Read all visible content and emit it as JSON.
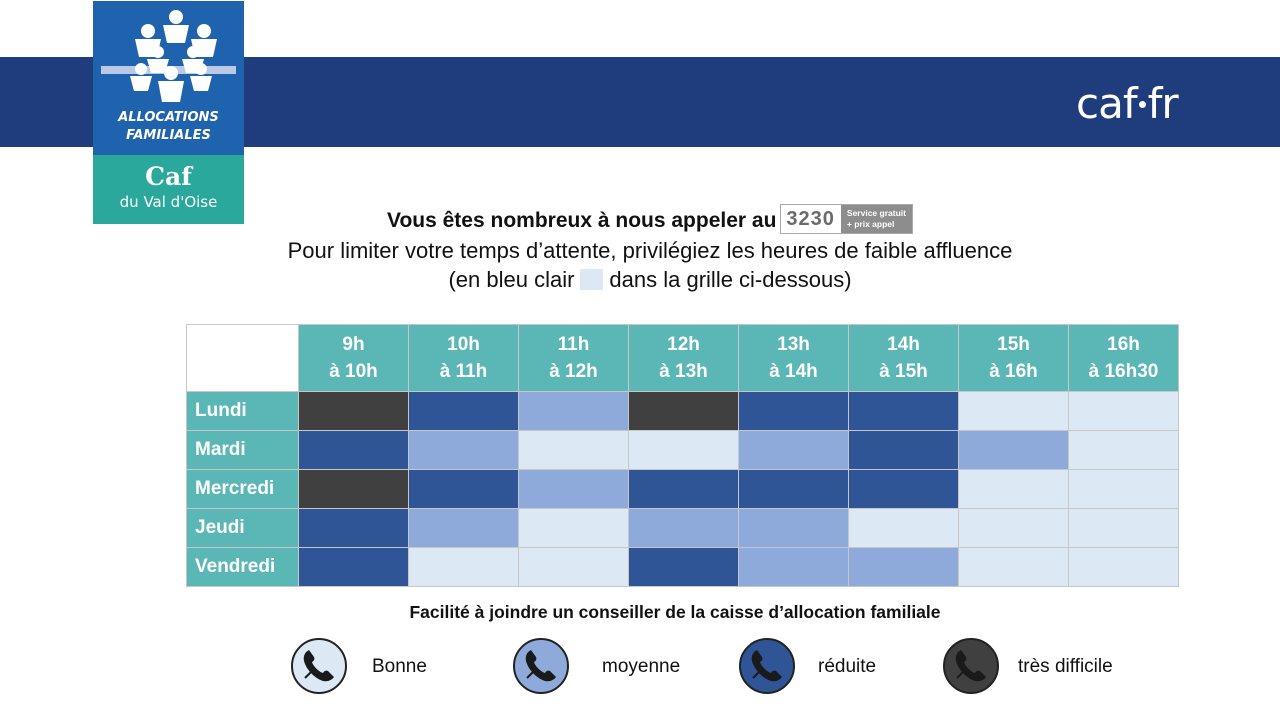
{
  "header": {
    "brand_left": "caf",
    "brand_right": "fr",
    "logo": {
      "line1": "ALLOCATIONS",
      "line2": "FAMILIALES",
      "caf": "Caf",
      "dept": "du Val d'Oise"
    }
  },
  "intro": {
    "line1": "Vous êtes nombreux à nous appeler au",
    "phone_number": "3230",
    "phone_note_1": "Service gratuit",
    "phone_note_2": "+ prix appel",
    "line2": "Pour limiter votre temps d’attente, privilégiez les heures de faible affluence",
    "line3_start": "(en bleu clair",
    "line3_end": "dans la grille ci-dessous)"
  },
  "grid": {
    "hours": [
      {
        "from": "9h",
        "to": "à 10h"
      },
      {
        "from": "10h",
        "to": "à 11h"
      },
      {
        "from": "11h",
        "to": "à 12h"
      },
      {
        "from": "12h",
        "to": "à 13h"
      },
      {
        "from": "13h",
        "to": "à 14h"
      },
      {
        "from": "14h",
        "to": "à 15h"
      },
      {
        "from": "15h",
        "to": "à 16h"
      },
      {
        "from": "16h",
        "to": "à 16h30"
      }
    ],
    "days": [
      {
        "name": "Lundi",
        "levels": [
          "tres_difficile",
          "reduite",
          "moyenne",
          "tres_difficile",
          "reduite",
          "reduite",
          "bonne",
          "bonne"
        ]
      },
      {
        "name": "Mardi",
        "levels": [
          "reduite",
          "moyenne",
          "bonne",
          "bonne",
          "moyenne",
          "reduite",
          "moyenne",
          "bonne"
        ]
      },
      {
        "name": "Mercredi",
        "levels": [
          "tres_difficile",
          "reduite",
          "moyenne",
          "reduite",
          "reduite",
          "reduite",
          "bonne",
          "bonne"
        ]
      },
      {
        "name": "Jeudi",
        "levels": [
          "reduite",
          "moyenne",
          "bonne",
          "moyenne",
          "moyenne",
          "bonne",
          "bonne",
          "bonne"
        ]
      },
      {
        "name": "Vendredi",
        "levels": [
          "reduite",
          "bonne",
          "bonne",
          "reduite",
          "moyenne",
          "moyenne",
          "bonne",
          "bonne"
        ]
      }
    ]
  },
  "caption": "Facilité à joindre un conseiller de la caisse d’allocation familiale",
  "legend": [
    {
      "key": "bonne",
      "label": "Bonne",
      "icon": "phone-icon"
    },
    {
      "key": "moyenne",
      "label": "moyenne",
      "icon": "phone-icon"
    },
    {
      "key": "reduite",
      "label": "réduite",
      "icon": "phone-icon"
    },
    {
      "key": "tres_difficile",
      "label": "très difficile",
      "icon": "phone-icon"
    }
  ],
  "colors": {
    "bonne": "#dde8f5",
    "moyenne": "#8eaadb",
    "reduite": "#2f5597",
    "tres_difficile": "#404040",
    "header_band": "#1f3d7c",
    "teal": "#5bb7b6"
  }
}
